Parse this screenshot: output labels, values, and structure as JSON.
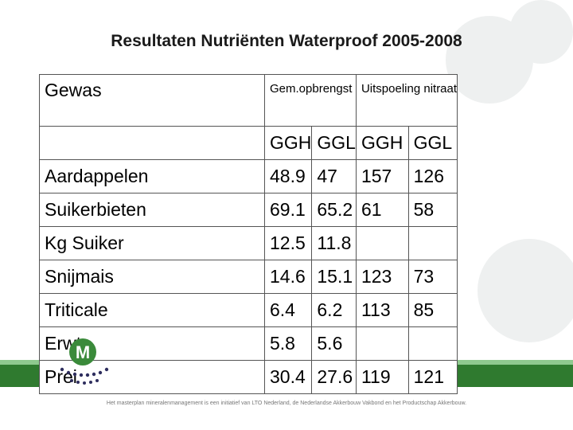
{
  "title": "Resultaten Nutriënten Waterproof 2005-2008",
  "header": {
    "crop": "Gewas",
    "yield": "Gem.opbrengst",
    "leaching": "Uitspoeling nitraat"
  },
  "subheader": [
    "GGH",
    "GGL",
    "GGH",
    "GGL"
  ],
  "rows": [
    {
      "crop": "Aardappelen",
      "y_ggh": "48.9",
      "y_ggl": "47",
      "n_ggh": "157",
      "n_ggl": "126"
    },
    {
      "crop": "Suikerbieten",
      "y_ggh": "69.1",
      "y_ggl": "65.2",
      "n_ggh": "61",
      "n_ggl": "58"
    },
    {
      "crop": "Kg Suiker",
      "y_ggh": "12.5",
      "y_ggl": "11.8",
      "n_ggh": "",
      "n_ggl": ""
    },
    {
      "crop": "Snijmais",
      "y_ggh": "14.6",
      "y_ggl": "15.1",
      "n_ggh": "123",
      "n_ggl": "73"
    },
    {
      "crop": "Triticale",
      "y_ggh": "6.4",
      "y_ggl": "6.2",
      "n_ggh": "113",
      "n_ggl": "85"
    },
    {
      "crop": "Erwt",
      "y_ggh": "5.8",
      "y_ggl": "5.6",
      "n_ggh": "",
      "n_ggl": ""
    },
    {
      "crop": "Prei",
      "y_ggh": "30.4",
      "y_ggl": "27.6",
      "n_ggh": "119",
      "n_ggl": "121"
    }
  ],
  "footer": "Het masterplan mineralenmanagement is een initiatief van LTO Nederland, de Nederlandse Akkerbouw Vakbond en het Productschap Akkerbouw.",
  "logo_letter": "M",
  "colors": {
    "band": "#2f7a2f",
    "logo": "#3a8a3a"
  }
}
